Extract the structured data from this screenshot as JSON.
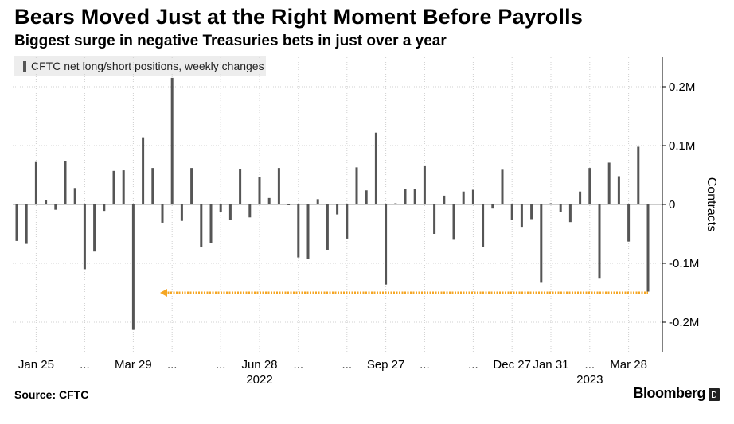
{
  "header": {
    "title": "Bears Moved Just at the Right Moment Before Payrolls",
    "subtitle": "Biggest surge in negative Treasuries bets in just over a year"
  },
  "legend": {
    "label": "CFTC net long/short positions, weekly changes"
  },
  "footer": {
    "source": "Source: CFTC",
    "brand": "Bloomberg"
  },
  "colors": {
    "bar": "#555555",
    "arrow": "#f5a623",
    "grid": "#d0d0d0"
  },
  "chart_data": {
    "type": "bar",
    "ylabel": "Contracts",
    "ylim": [
      -0.25,
      0.25
    ],
    "ytick_labels": [
      {
        "value": 0.2,
        "label": "0.2M"
      },
      {
        "value": 0.1,
        "label": "0.1M"
      },
      {
        "value": 0,
        "label": "0"
      },
      {
        "value": -0.1,
        "label": "-0.1M"
      },
      {
        "value": -0.2,
        "label": "-0.2M"
      }
    ],
    "xtick_labels": [
      {
        "index": 2,
        "label": "Jan 25"
      },
      {
        "index": 7,
        "label": "..."
      },
      {
        "index": 12,
        "label": "Mar 29"
      },
      {
        "index": 16,
        "label": "..."
      },
      {
        "index": 21,
        "label": "..."
      },
      {
        "index": 25,
        "label": "Jun 28"
      },
      {
        "index": 29,
        "label": "..."
      },
      {
        "index": 34,
        "label": "..."
      },
      {
        "index": 38,
        "label": "Sep 27"
      },
      {
        "index": 42,
        "label": "..."
      },
      {
        "index": 47,
        "label": "..."
      },
      {
        "index": 51,
        "label": "Dec 27"
      },
      {
        "index": 55,
        "label": "Jan 31"
      },
      {
        "index": 59,
        "label": "..."
      },
      {
        "index": 63,
        "label": "Mar 28"
      }
    ],
    "year_labels": [
      {
        "index": 25,
        "label": "2022"
      },
      {
        "index": 59,
        "label": "2023"
      }
    ],
    "grid": true,
    "annotation": {
      "type": "arrow",
      "y": -0.15,
      "from_index": 15,
      "to_index": 65
    },
    "values": [
      -0.062,
      -0.067,
      0.072,
      0.007,
      -0.009,
      0.073,
      0.028,
      -0.11,
      -0.08,
      -0.011,
      0.057,
      0.058,
      -0.213,
      0.114,
      0.062,
      -0.031,
      0.215,
      -0.028,
      0.062,
      -0.073,
      -0.065,
      -0.013,
      -0.026,
      0.06,
      -0.022,
      0.046,
      0.011,
      0.062,
      -0.001,
      -0.09,
      -0.093,
      0.009,
      -0.077,
      -0.017,
      -0.058,
      0.063,
      0.024,
      0.122,
      -0.136,
      0.002,
      0.026,
      0.027,
      0.065,
      -0.05,
      0.015,
      -0.06,
      0.022,
      0.025,
      -0.072,
      -0.007,
      0.059,
      -0.026,
      -0.038,
      -0.025,
      -0.133,
      0.002,
      -0.013,
      -0.03,
      0.022,
      0.062,
      -0.126,
      0.071,
      0.048,
      -0.063,
      0.098,
      -0.148
    ]
  }
}
